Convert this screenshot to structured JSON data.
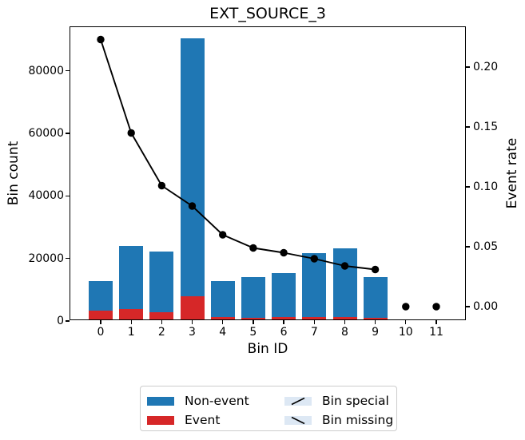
{
  "title": "EXT_SOURCE_3",
  "axes": {
    "x": {
      "label": "Bin ID",
      "tick_labels": [
        "0",
        "1",
        "2",
        "3",
        "4",
        "5",
        "6",
        "7",
        "8",
        "9",
        "10",
        "11"
      ]
    },
    "y_left": {
      "label": "Bin count",
      "tick_labels": [
        "0",
        "20000",
        "40000",
        "60000",
        "80000"
      ],
      "tick_values": [
        0,
        20000,
        40000,
        60000,
        80000
      ],
      "min": 0,
      "max": 94000
    },
    "y_right": {
      "label": "Event rate",
      "tick_labels": [
        "0.00",
        "0.05",
        "0.10",
        "0.15",
        "0.20"
      ],
      "tick_values": [
        0,
        0.05,
        0.1,
        0.15,
        0.2
      ],
      "min": -0.012,
      "max": 0.2333
    }
  },
  "chart_data": {
    "type": "bar",
    "subtype": "stacked-bars-with-line",
    "title": "EXT_SOURCE_3",
    "xlabel": "Bin ID",
    "ylabel_left": "Bin count",
    "ylabel_right": "Event rate",
    "categories": [
      0,
      1,
      2,
      3,
      4,
      5,
      6,
      7,
      8,
      9,
      10,
      11
    ],
    "series": [
      {
        "name": "Non-event",
        "axis": "left",
        "color": "#1f77b4",
        "values": [
          9550,
          20200,
          19600,
          82600,
          11550,
          12850,
          14100,
          20450,
          22000,
          13050,
          0,
          0
        ]
      },
      {
        "name": "Event",
        "axis": "left",
        "color": "#d62728",
        "values": [
          2750,
          3400,
          2200,
          7400,
          750,
          650,
          700,
          850,
          800,
          450,
          0,
          0
        ]
      }
    ],
    "bin_totals": [
      12300,
      23600,
      21800,
      90000,
      12300,
      13500,
      14800,
      21300,
      22800,
      13500,
      0,
      0
    ],
    "line_series": {
      "name": "Event rate",
      "axis": "right",
      "color": "#000000",
      "marker": "circle",
      "values": [
        0.223,
        0.145,
        0.101,
        0.084,
        0.06,
        0.049,
        0.045,
        0.04,
        0.034,
        0.031,
        0.0,
        0.0
      ],
      "line_connected_bins": [
        0,
        9
      ],
      "isolated_point_bins": [
        10,
        11
      ]
    },
    "grid": "off",
    "legend_position": "below-center"
  },
  "legend": {
    "items": [
      {
        "label": "Non-event",
        "color": "#1f77b4",
        "hatch": null
      },
      {
        "label": "Event",
        "color": "#d62728",
        "hatch": null
      },
      {
        "label": "Bin special",
        "color": "#dde8f4",
        "hatch": "/"
      },
      {
        "label": "Bin missing",
        "color": "#dde8f4",
        "hatch": "\\"
      }
    ]
  }
}
